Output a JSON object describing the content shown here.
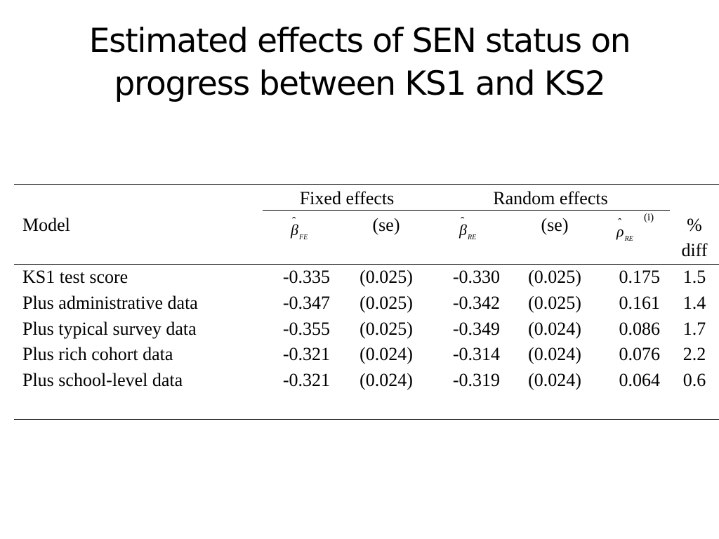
{
  "title": {
    "line1": "Estimated effects of SEN status on",
    "line2": "progress between KS1 and KS2"
  },
  "table": {
    "group_headers": {
      "fixed": "Fixed effects",
      "random": "Random effects"
    },
    "columns": {
      "model": "Model",
      "beta_fe_symbol": "β",
      "beta_fe_hat": "ˆ",
      "beta_fe_sub": "FE",
      "se_fe": "(se)",
      "beta_re_symbol": "β",
      "beta_re_hat": "ˆ",
      "beta_re_sub": "RE",
      "se_re": "(se)",
      "rho_re_symbol": "ρ",
      "rho_re_hat": "ˆ",
      "rho_re_sub": "RE",
      "rho_re_note": "(i)",
      "pct_line1": "%",
      "pct_line2": "diff"
    },
    "rows": [
      {
        "model": "KS1 test score",
        "beta_fe": "-0.335",
        "se_fe": "(0.025)",
        "beta_re": "-0.330",
        "se_re": "(0.025)",
        "rho_re": "0.175",
        "pct_diff": "1.5"
      },
      {
        "model": "Plus administrative data",
        "beta_fe": "-0.347",
        "se_fe": "(0.025)",
        "beta_re": "-0.342",
        "se_re": "(0.025)",
        "rho_re": "0.161",
        "pct_diff": "1.4"
      },
      {
        "model": "Plus typical survey data",
        "beta_fe": "-0.355",
        "se_fe": "(0.025)",
        "beta_re": "-0.349",
        "se_re": "(0.024)",
        "rho_re": "0.086",
        "pct_diff": "1.7"
      },
      {
        "model": "Plus rich cohort data",
        "beta_fe": "-0.321",
        "se_fe": "(0.024)",
        "beta_re": "-0.314",
        "se_re": "(0.024)",
        "rho_re": "0.076",
        "pct_diff": "2.2"
      },
      {
        "model": "Plus school-level data",
        "beta_fe": "-0.321",
        "se_fe": "(0.024)",
        "beta_re": "-0.319",
        "se_re": "(0.024)",
        "rho_re": "0.064",
        "pct_diff": "0.6"
      }
    ]
  }
}
